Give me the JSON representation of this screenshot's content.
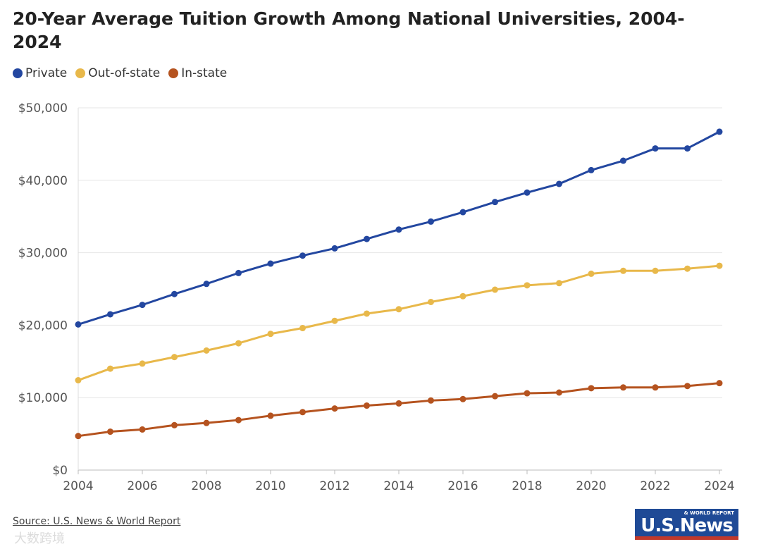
{
  "chart_data": {
    "type": "line",
    "title": "20-Year Average Tuition Growth Among National Universities, 2004-2024",
    "xlabel": "",
    "ylabel": "",
    "ylim": [
      0,
      50000
    ],
    "xlim": [
      2004,
      2024
    ],
    "yticks": [
      "$0",
      "$10,000",
      "$20,000",
      "$30,000",
      "$40,000",
      "$50,000"
    ],
    "ytick_values": [
      0,
      10000,
      20000,
      30000,
      40000,
      50000
    ],
    "xticks": [
      2004,
      2006,
      2008,
      2010,
      2012,
      2014,
      2016,
      2018,
      2020,
      2022,
      2024
    ],
    "grid": true,
    "legend_position": "top-left",
    "x": [
      2004,
      2005,
      2006,
      2007,
      2008,
      2009,
      2010,
      2011,
      2012,
      2013,
      2014,
      2015,
      2016,
      2017,
      2018,
      2019,
      2020,
      2021,
      2022,
      2023,
      2024
    ],
    "series": [
      {
        "name": "Private",
        "color": "#2347a0",
        "values": [
          20100,
          21500,
          22800,
          24300,
          25700,
          27200,
          28500,
          29600,
          30600,
          31900,
          33200,
          34300,
          35600,
          37000,
          38300,
          39500,
          41400,
          42700,
          44400,
          44400,
          46700
        ]
      },
      {
        "name": "Out-of-state",
        "color": "#e8b84a",
        "values": [
          12400,
          14000,
          14700,
          15600,
          16500,
          17500,
          18800,
          19600,
          20600,
          21600,
          22200,
          23200,
          24000,
          24900,
          25500,
          25800,
          27100,
          27500,
          27500,
          27800,
          28200
        ]
      },
      {
        "name": "In-state",
        "color": "#b5531f",
        "values": [
          4700,
          5300,
          5600,
          6200,
          6500,
          6900,
          7500,
          8000,
          8500,
          8900,
          9200,
          9600,
          9800,
          10200,
          10600,
          10700,
          11300,
          11400,
          11400,
          11600,
          12000
        ]
      }
    ]
  },
  "source": "Source: U.S. News & World Report",
  "logo": {
    "main": "U.S.News",
    "sub": "& WORLD REPORT"
  },
  "watermark": "大数跨境"
}
